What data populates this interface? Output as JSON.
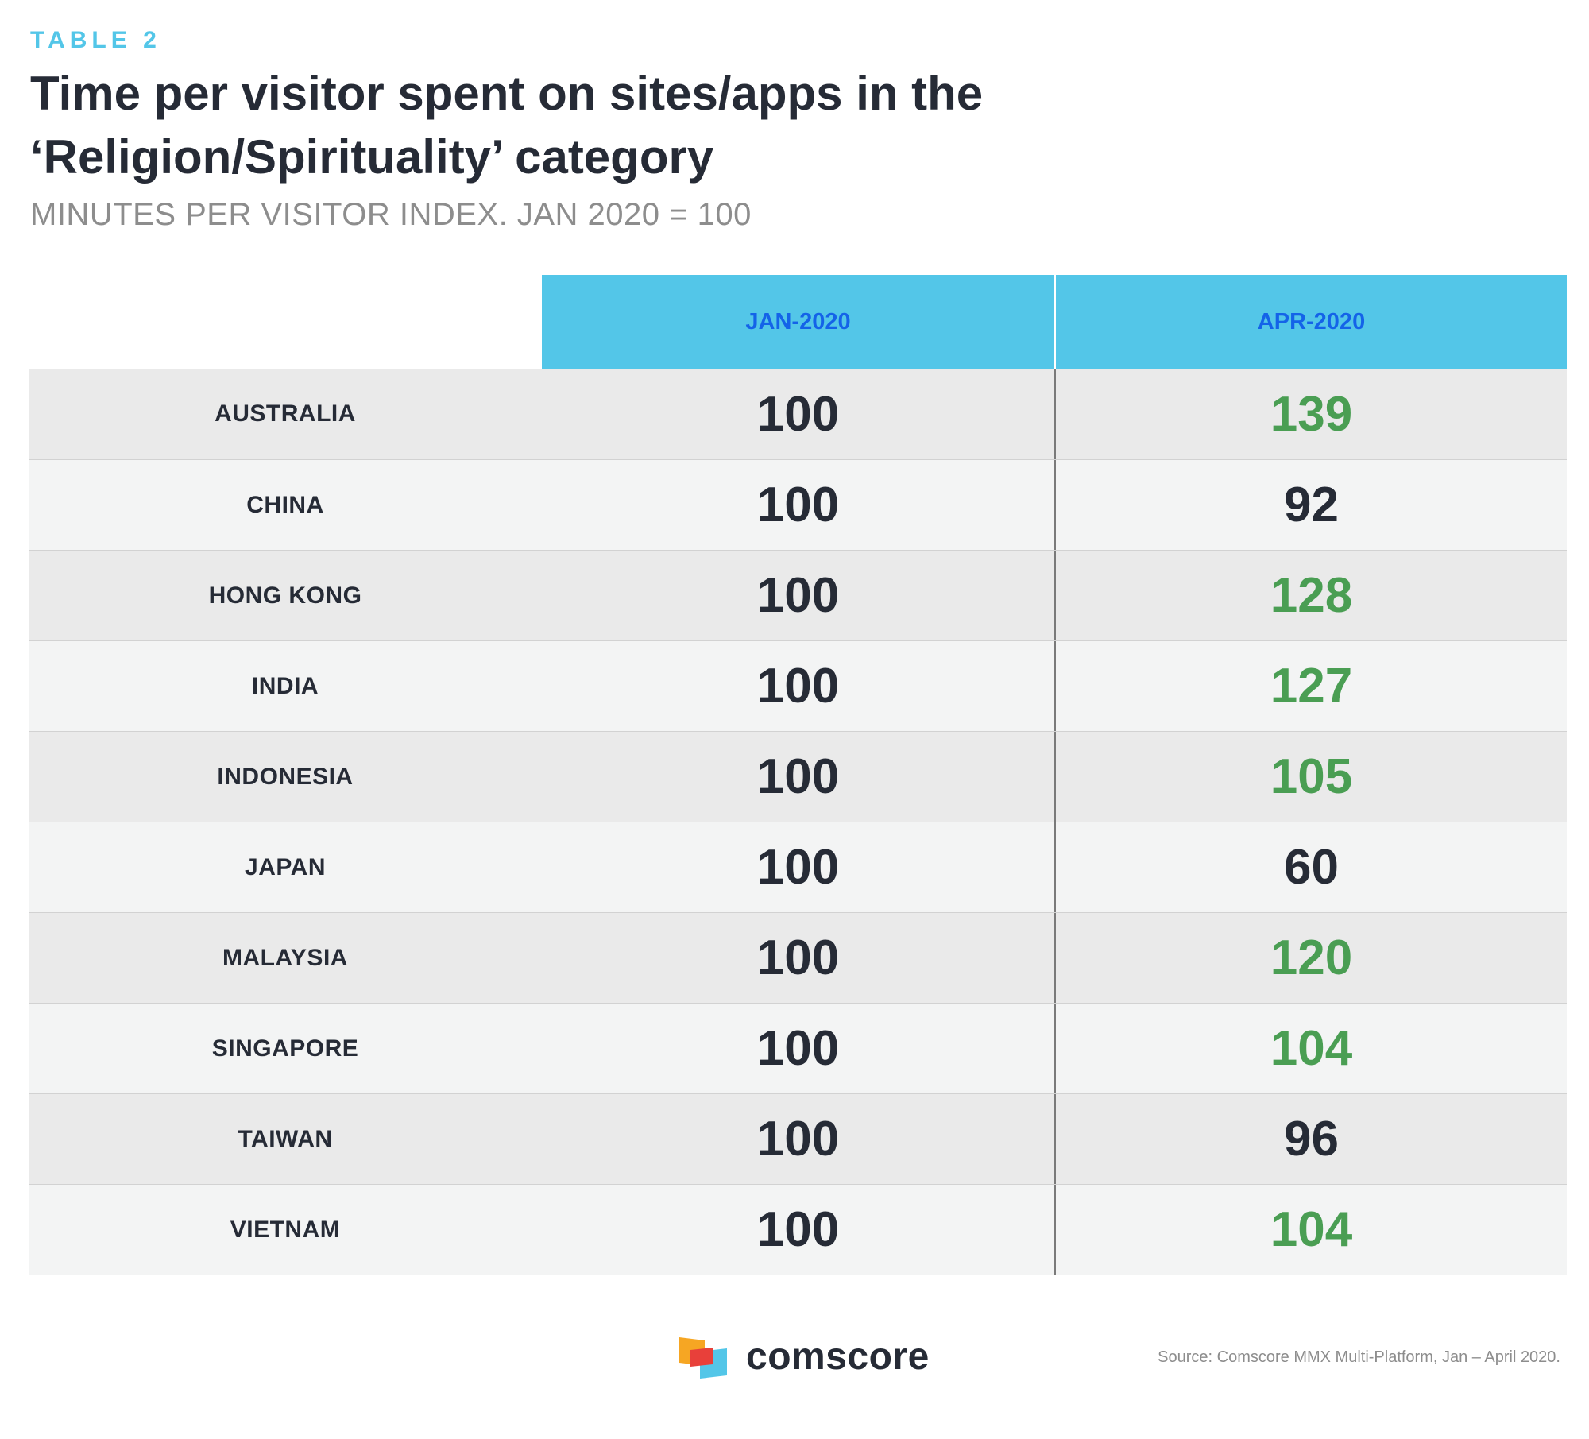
{
  "header": {
    "eyebrow": "TABLE 2",
    "title": "Time per visitor spent on sites/apps in the ‘Religion/Spirituality’ category",
    "subtitle": "MINUTES PER VISITOR INDEX. JAN 2020 = 100"
  },
  "chart_data": {
    "type": "table",
    "title": "Time per visitor spent on sites/apps in the ‘Religion/Spirituality’ category",
    "subtitle": "MINUTES PER VISITOR INDEX. JAN 2020 = 100",
    "columns": [
      "JAN-2020",
      "APR-2020"
    ],
    "rows": [
      {
        "country": "AUSTRALIA",
        "jan": 100,
        "apr": 139
      },
      {
        "country": "CHINA",
        "jan": 100,
        "apr": 92
      },
      {
        "country": "HONG KONG",
        "jan": 100,
        "apr": 128
      },
      {
        "country": "INDIA",
        "jan": 100,
        "apr": 127
      },
      {
        "country": "INDONESIA",
        "jan": 100,
        "apr": 105
      },
      {
        "country": "JAPAN",
        "jan": 100,
        "apr": 60
      },
      {
        "country": "MALAYSIA",
        "jan": 100,
        "apr": 120
      },
      {
        "country": "SINGAPORE",
        "jan": 100,
        "apr": 104
      },
      {
        "country": "TAIWAN",
        "jan": 100,
        "apr": 96
      },
      {
        "country": "VIETNAM",
        "jan": 100,
        "apr": 104
      }
    ],
    "colors": {
      "header_bg": "#53c6e8",
      "header_text": "#1463e8",
      "increase": "#4a9e53",
      "default": "#262b36"
    }
  },
  "footer": {
    "logo_text": "comscore",
    "source": "Source: Comscore MMX Multi-Platform, Jan – April 2020."
  }
}
